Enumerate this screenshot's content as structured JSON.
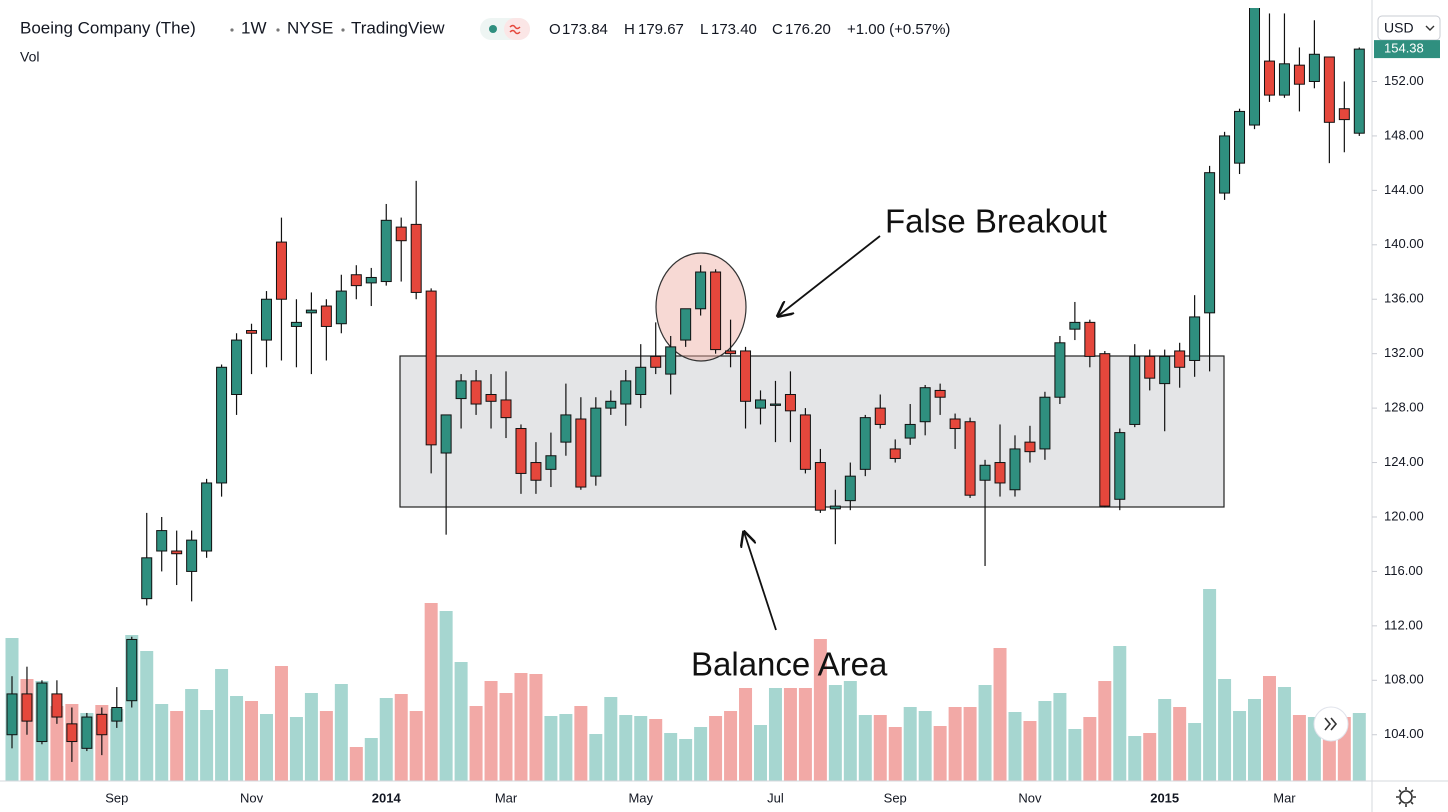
{
  "chart_data": {
    "type": "candlestick",
    "header": {
      "symbol": "Boeing Company (The)",
      "interval": "1W",
      "exchange": "NYSE",
      "source": "TradingView"
    },
    "ohlc_legend": [
      {
        "key": "O",
        "value": "173.84"
      },
      {
        "key": "H",
        "value": "179.67"
      },
      {
        "key": "L",
        "value": "173.40"
      },
      {
        "key": "C",
        "value": "176.20"
      }
    ],
    "change_legend": "+1.00 (+0.57%)",
    "volume_label": "Vol",
    "currency": "USD",
    "annotations": [
      "False Breakout",
      "Balance Area"
    ],
    "up_color": "#2f8f7f",
    "down_color": "#e5473c",
    "volume_up_color": "#a6d6d0",
    "volume_down_color": "#f2a9a6",
    "grid": false,
    "categories": [
      null,
      null,
      null,
      null,
      null,
      null,
      null,
      "Sep",
      null,
      null,
      null,
      null,
      null,
      null,
      null,
      null,
      "Nov",
      null,
      null,
      null,
      null,
      null,
      null,
      null,
      null,
      "2014",
      null,
      null,
      null,
      null,
      null,
      null,
      null,
      "Mar",
      null,
      null,
      null,
      null,
      null,
      null,
      null,
      null,
      "May",
      null,
      null,
      null,
      null,
      null,
      null,
      null,
      null,
      "Jul",
      null,
      null,
      null,
      null,
      null,
      null,
      null,
      "Sep",
      null,
      null,
      null,
      null,
      null,
      null,
      null,
      null,
      "Nov",
      null,
      null,
      null,
      null,
      null,
      null,
      null,
      null,
      "2015",
      null,
      null,
      null,
      null,
      null,
      null,
      null,
      "Mar",
      null,
      null,
      null,
      null,
      null
    ],
    "open": [
      104.0,
      107.0,
      103.5,
      107.0,
      104.8,
      103.0,
      105.5,
      105.0,
      106.5,
      114.0,
      117.5,
      117.5,
      116.0,
      117.5,
      122.5,
      129.0,
      133.7,
      133.0,
      140.2,
      134.0,
      135.0,
      135.5,
      134.2,
      137.8,
      137.2,
      137.3,
      141.3,
      141.5,
      136.6,
      124.7,
      128.7,
      130.0,
      129.0,
      128.6,
      126.5,
      124.0,
      123.5,
      125.5,
      127.2,
      123.0,
      128.0,
      128.3,
      129.0,
      131.8,
      130.5,
      133.0,
      135.3,
      138.0,
      132.2,
      132.2,
      128.0,
      128.2,
      129.0,
      127.5,
      124.0,
      120.6,
      121.2,
      123.5,
      128.0,
      125.0,
      125.8,
      127.0,
      129.3,
      127.2,
      127.0,
      122.7,
      124.0,
      122.0,
      125.5,
      125.0,
      128.8,
      133.8,
      134.3,
      132.0,
      121.3,
      126.8,
      131.8,
      129.8,
      132.2,
      131.5,
      135.0,
      143.8,
      146.0,
      148.8,
      153.5,
      151.0,
      153.2,
      152.0,
      153.8,
      150.0,
      148.2
    ],
    "high": [
      108.3,
      109.0,
      108.0,
      108.0,
      106.0,
      105.6,
      106.0,
      107.5,
      111.2,
      120.3,
      120.0,
      119.0,
      119.0,
      122.8,
      131.2,
      133.5,
      134.2,
      136.6,
      142.0,
      136.0,
      136.5,
      136.0,
      137.8,
      138.5,
      138.3,
      143.0,
      142.0,
      144.7,
      136.8,
      127.5,
      130.5,
      130.8,
      130.5,
      130.7,
      126.8,
      125.5,
      126.2,
      129.8,
      128.8,
      128.8,
      129.3,
      130.8,
      132.7,
      134.3,
      133.3,
      135.3,
      138.5,
      138.2,
      134.5,
      132.5,
      129.3,
      130.0,
      130.7,
      128.0,
      125.0,
      122.0,
      124.0,
      127.5,
      129.0,
      125.7,
      128.3,
      129.7,
      129.8,
      127.6,
      127.3,
      124.2,
      126.8,
      126.0,
      126.7,
      129.2,
      133.3,
      135.8,
      134.5,
      132.2,
      126.5,
      132.7,
      132.3,
      132.3,
      132.8,
      136.3,
      145.8,
      148.3,
      150.0,
      159.0,
      157.0,
      157.0,
      154.5,
      156.5,
      153.8,
      152.0,
      154.5
    ],
    "low": [
      103.0,
      104.0,
      103.3,
      104.8,
      102.0,
      102.8,
      102.5,
      104.5,
      106.0,
      113.5,
      116.0,
      115.0,
      113.8,
      117.0,
      121.5,
      127.5,
      130.5,
      131.0,
      131.5,
      131.0,
      130.5,
      131.5,
      133.5,
      136.0,
      135.5,
      137.0,
      137.3,
      136.0,
      123.2,
      118.7,
      126.5,
      127.5,
      126.5,
      125.8,
      121.7,
      121.7,
      122.2,
      124.5,
      122.0,
      122.3,
      127.5,
      126.7,
      128.0,
      130.5,
      129.0,
      132.5,
      134.8,
      132.0,
      131.0,
      126.5,
      126.8,
      125.5,
      125.5,
      123.2,
      120.3,
      118.0,
      120.5,
      123.0,
      126.5,
      124.0,
      125.3,
      126.0,
      127.5,
      125.0,
      121.4,
      116.4,
      121.5,
      121.5,
      124.0,
      124.2,
      128.3,
      133.0,
      131.0,
      120.7,
      120.5,
      126.6,
      129.3,
      126.3,
      129.5,
      130.3,
      130.7,
      143.3,
      145.2,
      148.5,
      150.5,
      150.8,
      149.8,
      151.5,
      146.0,
      146.8,
      148.0
    ],
    "close": [
      107.0,
      105.0,
      107.8,
      105.3,
      103.5,
      105.3,
      104.0,
      106.0,
      111.0,
      117.0,
      119.0,
      117.3,
      118.3,
      122.5,
      131.0,
      133.0,
      133.5,
      136.0,
      136.0,
      134.3,
      135.2,
      134.0,
      136.6,
      137.0,
      137.6,
      141.8,
      140.3,
      136.5,
      125.3,
      127.5,
      130.0,
      128.3,
      128.5,
      127.3,
      123.2,
      122.7,
      124.5,
      127.5,
      122.2,
      128.0,
      128.5,
      130.0,
      131.0,
      131.0,
      132.5,
      135.3,
      138.0,
      132.3,
      132.0,
      128.5,
      128.6,
      128.3,
      127.8,
      123.5,
      120.5,
      120.8,
      123.0,
      127.3,
      126.8,
      124.3,
      126.8,
      129.5,
      128.8,
      126.5,
      121.6,
      123.8,
      122.5,
      125.0,
      124.8,
      128.8,
      132.8,
      134.3,
      131.8,
      120.8,
      126.2,
      131.8,
      130.2,
      131.8,
      131.0,
      134.7,
      145.3,
      148.0,
      149.8,
      159.0,
      151.0,
      153.3,
      151.8,
      154.0,
      149.0,
      149.2,
      154.38
    ],
    "volume": [
      28.6,
      20.4,
      20,
      15,
      15.4,
      13.6,
      15.2,
      14.4,
      29.2,
      26,
      15.4,
      14,
      18.4,
      14.2,
      22.4,
      17,
      16,
      13.4,
      23,
      12.8,
      17.6,
      14,
      19.4,
      6.8,
      8.6,
      16.6,
      17.4,
      14,
      35.6,
      34,
      23.8,
      15,
      20,
      17.6,
      21.6,
      21.4,
      13,
      13.4,
      15,
      9.4,
      16.8,
      13.2,
      13,
      12.4,
      9.6,
      8.4,
      10.8,
      13,
      14,
      18.6,
      11.2,
      18.6,
      18.6,
      18.6,
      28.4,
      19.2,
      20,
      13.2,
      13.2,
      10.8,
      14.8,
      14,
      11,
      14.8,
      14.8,
      19.2,
      26.6,
      13.8,
      12,
      16,
      17.6,
      10.4,
      12.8,
      20,
      27,
      9,
      9.6,
      16.4,
      14.8,
      11.6,
      38.4,
      20.4,
      14,
      16.4,
      21,
      18.8,
      13.2,
      12.8,
      13.2,
      12.8,
      13.6
    ],
    "volume_lim": [
      0,
      40
    ],
    "ylim": [
      100.6,
      157.4
    ],
    "yticks": [
      {
        "value": 104,
        "label": "104.00"
      },
      {
        "value": 108,
        "label": "108.00"
      },
      {
        "value": 112,
        "label": "112.00"
      },
      {
        "value": 116,
        "label": "116.00"
      },
      {
        "value": 120,
        "label": "120.00"
      },
      {
        "value": 124,
        "label": "124.00"
      },
      {
        "value": 128,
        "label": "128.00"
      },
      {
        "value": 132,
        "label": "132.00"
      },
      {
        "value": 136,
        "label": "136.00"
      },
      {
        "value": 140,
        "label": "140.00"
      },
      {
        "value": 144,
        "label": "144.00"
      },
      {
        "value": 148,
        "label": "148.00"
      },
      {
        "value": 152,
        "label": "152.00"
      }
    ]
  }
}
